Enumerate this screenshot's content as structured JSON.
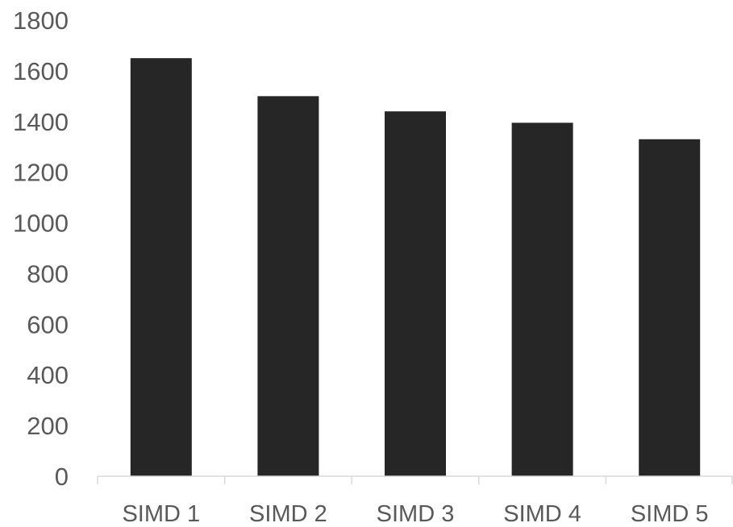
{
  "chart_data": {
    "type": "bar",
    "title": "",
    "xlabel": "",
    "ylabel": "",
    "categories": [
      "SIMD 1",
      "SIMD 2",
      "SIMD 3",
      "SIMD 4",
      "SIMD 5"
    ],
    "values": [
      1650,
      1500,
      1440,
      1395,
      1330
    ],
    "ylim": [
      0,
      1800
    ],
    "yticks": [
      0,
      200,
      400,
      600,
      800,
      1000,
      1200,
      1400,
      1600,
      1800
    ],
    "ytick_labels": [
      "0",
      "200",
      "400",
      "600",
      "800",
      "1000",
      "1200",
      "1400",
      "1600",
      "1800"
    ],
    "grid": false,
    "legend": "none",
    "colors": {
      "bar": "#262626",
      "axis": "#d9d9d9",
      "text": "#595959"
    }
  }
}
